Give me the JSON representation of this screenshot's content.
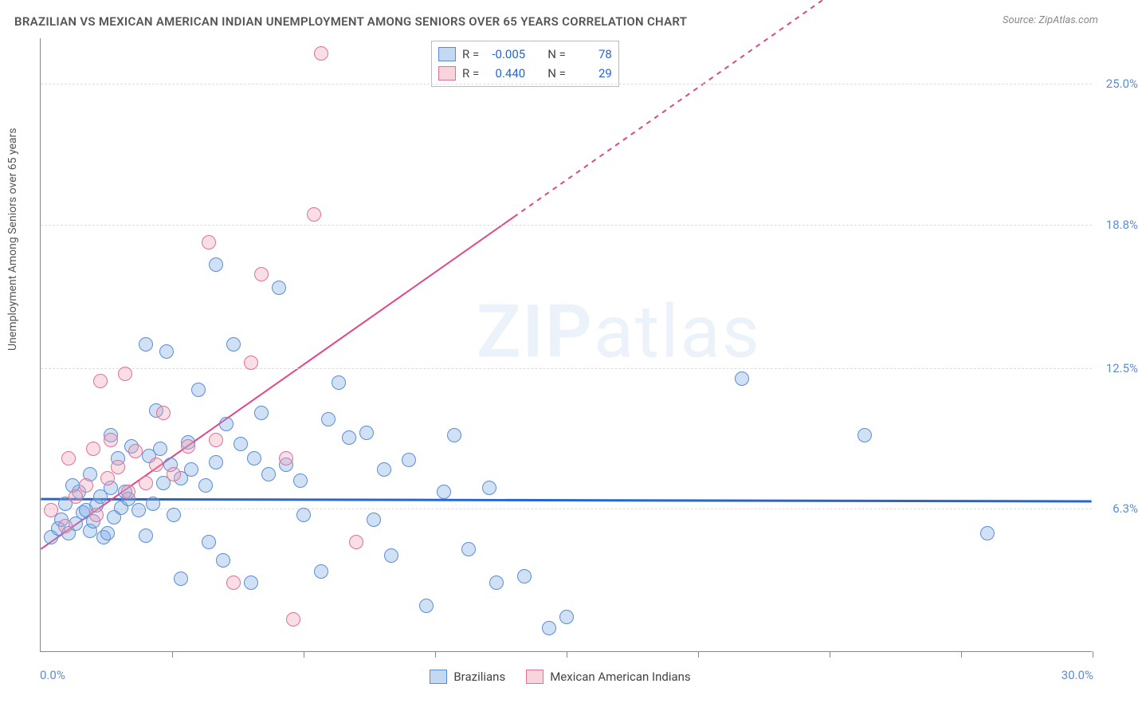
{
  "title": "BRAZILIAN VS MEXICAN AMERICAN INDIAN UNEMPLOYMENT AMONG SENIORS OVER 65 YEARS CORRELATION CHART",
  "source": "Source: ZipAtlas.com",
  "y_axis_label": "Unemployment Among Seniors over 65 years",
  "watermark_bold": "ZIP",
  "watermark_light": "atlas",
  "chart": {
    "type": "scatter",
    "background_color": "#ffffff",
    "grid_color": "#dddddd",
    "axis_color": "#888888",
    "xlim": [
      0,
      30
    ],
    "ylim": [
      0,
      27
    ],
    "x_min_label": "0.0%",
    "x_max_label": "30.0%",
    "x_ticks": [
      3.75,
      7.5,
      11.25,
      15.0,
      18.75,
      22.5,
      26.25,
      30.0
    ],
    "y_gridlines": [
      6.3,
      12.5,
      18.8,
      25.0
    ],
    "y_tick_labels": [
      "6.3%",
      "12.5%",
      "18.8%",
      "25.0%"
    ],
    "marker_radius": 9,
    "series": [
      {
        "name": "Brazilians",
        "color_fill": "rgba(122,168,225,0.35)",
        "color_stroke": "#5b8dd6",
        "r_label": "R =",
        "r_value": "-0.005",
        "n_label": "N =",
        "n_value": "78",
        "trend": {
          "y_at_x0": 6.7,
          "y_at_xmax": 6.6,
          "stroke": "#2566d6",
          "width": 3,
          "dash": ""
        },
        "points": [
          [
            0.3,
            5.0
          ],
          [
            0.5,
            5.4
          ],
          [
            0.6,
            5.8
          ],
          [
            0.8,
            5.2
          ],
          [
            1.0,
            5.6
          ],
          [
            1.2,
            6.1
          ],
          [
            1.4,
            5.3
          ],
          [
            1.6,
            6.4
          ],
          [
            1.8,
            5.0
          ],
          [
            0.7,
            6.5
          ],
          [
            1.1,
            7.0
          ],
          [
            1.3,
            6.2
          ],
          [
            1.5,
            5.7
          ],
          [
            1.7,
            6.8
          ],
          [
            1.9,
            5.2
          ],
          [
            2.1,
            5.9
          ],
          [
            2.3,
            6.3
          ],
          [
            2.5,
            6.7
          ],
          [
            0.9,
            7.3
          ],
          [
            1.4,
            7.8
          ],
          [
            2.0,
            7.2
          ],
          [
            2.4,
            7.0
          ],
          [
            2.8,
            6.2
          ],
          [
            3.0,
            5.1
          ],
          [
            3.2,
            6.5
          ],
          [
            3.5,
            7.4
          ],
          [
            3.8,
            6.0
          ],
          [
            2.2,
            8.5
          ],
          [
            2.6,
            9.0
          ],
          [
            3.1,
            8.6
          ],
          [
            3.4,
            8.9
          ],
          [
            3.7,
            8.2
          ],
          [
            4.0,
            7.6
          ],
          [
            4.3,
            8.0
          ],
          [
            4.7,
            7.3
          ],
          [
            5.0,
            8.3
          ],
          [
            2.0,
            9.5
          ],
          [
            3.3,
            10.6
          ],
          [
            4.2,
            9.2
          ],
          [
            5.3,
            10.0
          ],
          [
            5.7,
            9.1
          ],
          [
            6.1,
            8.5
          ],
          [
            6.5,
            7.8
          ],
          [
            7.0,
            8.2
          ],
          [
            7.4,
            7.5
          ],
          [
            3.6,
            13.2
          ],
          [
            4.5,
            11.5
          ],
          [
            5.5,
            13.5
          ],
          [
            6.3,
            10.5
          ],
          [
            8.2,
            10.2
          ],
          [
            8.8,
            9.4
          ],
          [
            9.3,
            9.6
          ],
          [
            9.8,
            8.0
          ],
          [
            10.5,
            8.4
          ],
          [
            3.0,
            13.5
          ],
          [
            5.0,
            17.0
          ],
          [
            6.8,
            16.0
          ],
          [
            8.5,
            11.8
          ],
          [
            11.5,
            7.0
          ],
          [
            12.2,
            4.5
          ],
          [
            13.0,
            3.0
          ],
          [
            13.8,
            3.3
          ],
          [
            15.0,
            1.5
          ],
          [
            10.0,
            4.2
          ],
          [
            11.0,
            2.0
          ],
          [
            9.5,
            5.8
          ],
          [
            8.0,
            3.5
          ],
          [
            7.5,
            6.0
          ],
          [
            6.0,
            3.0
          ],
          [
            5.2,
            4.0
          ],
          [
            4.0,
            3.2
          ],
          [
            4.8,
            4.8
          ],
          [
            20.0,
            12.0
          ],
          [
            23.5,
            9.5
          ],
          [
            27.0,
            5.2
          ],
          [
            14.5,
            1.0
          ],
          [
            12.8,
            7.2
          ],
          [
            11.8,
            9.5
          ]
        ]
      },
      {
        "name": "Mexican American Indians",
        "color_fill": "rgba(240,160,180,0.35)",
        "color_stroke": "#e27099",
        "r_label": "R =",
        "r_value": "0.440",
        "n_label": "N =",
        "n_value": "29",
        "trend": {
          "y_at_x0": 4.5,
          "y_at_xmax": 37.0,
          "stroke": "#e2458a",
          "width": 2,
          "dash": "",
          "dash_after_x": 13.5
        },
        "points": [
          [
            0.3,
            6.2
          ],
          [
            0.7,
            5.5
          ],
          [
            1.0,
            6.8
          ],
          [
            1.3,
            7.3
          ],
          [
            1.6,
            6.0
          ],
          [
            1.9,
            7.6
          ],
          [
            2.2,
            8.1
          ],
          [
            2.5,
            7.0
          ],
          [
            0.8,
            8.5
          ],
          [
            1.5,
            8.9
          ],
          [
            2.0,
            9.3
          ],
          [
            2.7,
            8.8
          ],
          [
            3.0,
            7.4
          ],
          [
            3.3,
            8.2
          ],
          [
            3.8,
            7.8
          ],
          [
            1.7,
            11.9
          ],
          [
            2.4,
            12.2
          ],
          [
            3.5,
            10.5
          ],
          [
            4.2,
            9.0
          ],
          [
            5.0,
            9.3
          ],
          [
            6.0,
            12.7
          ],
          [
            7.0,
            8.5
          ],
          [
            4.8,
            18.0
          ],
          [
            6.3,
            16.6
          ],
          [
            7.8,
            19.2
          ],
          [
            8.0,
            26.3
          ],
          [
            5.5,
            3.0
          ],
          [
            7.2,
            1.4
          ],
          [
            9.0,
            4.8
          ]
        ]
      }
    ]
  },
  "bottom_legend": [
    {
      "swatch": "blue",
      "label": "Brazilians"
    },
    {
      "swatch": "pink",
      "label": "Mexican American Indians"
    }
  ]
}
